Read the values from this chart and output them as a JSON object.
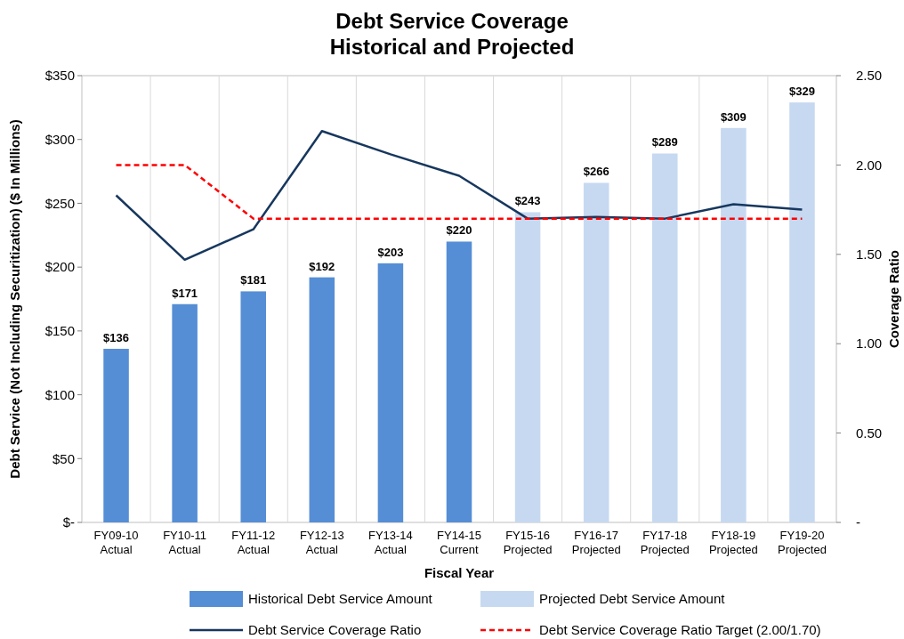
{
  "chart_data": {
    "type": "bar",
    "title": "Debt Service Coverage\nHistorical and Projected",
    "xlabel": "Fiscal Year",
    "ylabel": "Debt Service (Not Including Securitization)  ($ In Millions)",
    "y2label": "Coverage Ratio",
    "categories": [
      "FY09-10\nActual",
      "FY10-11\nActual",
      "FY11-12\nActual",
      "FY12-13\nActual",
      "FY13-14\nActual",
      "FY14-15\nCurrent",
      "FY15-16\nProjected",
      "FY16-17\nProjected",
      "FY17-18\nProjected",
      "FY18-19\nProjected",
      "FY19-20\nProjected"
    ],
    "series": [
      {
        "name": "Historical Debt Service Amount",
        "type": "bar",
        "color": "#558ed5",
        "values": [
          136,
          171,
          181,
          192,
          203,
          220,
          null,
          null,
          null,
          null,
          null
        ],
        "value_labels": [
          "$136",
          "$171",
          "$181",
          "$192",
          "$203",
          "$220",
          null,
          null,
          null,
          null,
          null
        ]
      },
      {
        "name": "Projected Debt Service Amount",
        "type": "bar",
        "color": "#c6d9f1",
        "values": [
          null,
          null,
          null,
          null,
          null,
          null,
          243,
          266,
          289,
          309,
          329
        ],
        "value_labels": [
          null,
          null,
          null,
          null,
          null,
          null,
          "$243",
          "$266",
          "$289",
          "$309",
          "$329"
        ]
      },
      {
        "name": "Debt Service Coverage Ratio",
        "type": "line",
        "axis": "y2",
        "color": "#17375e",
        "line_style": "solid",
        "values": [
          1.83,
          1.47,
          1.64,
          2.19,
          2.06,
          1.94,
          1.7,
          1.71,
          1.7,
          1.78,
          1.75
        ]
      },
      {
        "name": "Debt Service Coverage Ratio Target (2.00/1.70)",
        "type": "line",
        "axis": "y2",
        "color": "#ff0000",
        "line_style": "dashed",
        "values": [
          2.0,
          2.0,
          1.7,
          1.7,
          1.7,
          1.7,
          1.7,
          1.7,
          1.7,
          1.7,
          1.7
        ]
      }
    ],
    "ylim": [
      0,
      350
    ],
    "yticks": [
      {
        "value": 0,
        "label": "$-"
      },
      {
        "value": 50,
        "label": "$50"
      },
      {
        "value": 100,
        "label": "$100"
      },
      {
        "value": 150,
        "label": "$150"
      },
      {
        "value": 200,
        "label": "$200"
      },
      {
        "value": 250,
        "label": "$250"
      },
      {
        "value": 300,
        "label": "$300"
      },
      {
        "value": 350,
        "label": "$350"
      }
    ],
    "y2lim": [
      0,
      2.5
    ],
    "y2ticks": [
      {
        "value": 0,
        "label": "-"
      },
      {
        "value": 0.5,
        "label": "0.50"
      },
      {
        "value": 1,
        "label": "1.00"
      },
      {
        "value": 1.5,
        "label": "1.50"
      },
      {
        "value": 2,
        "label": "2.00"
      },
      {
        "value": 2.5,
        "label": "2.50"
      }
    ],
    "grid": "x",
    "legend": "bottom",
    "marker": "none"
  }
}
